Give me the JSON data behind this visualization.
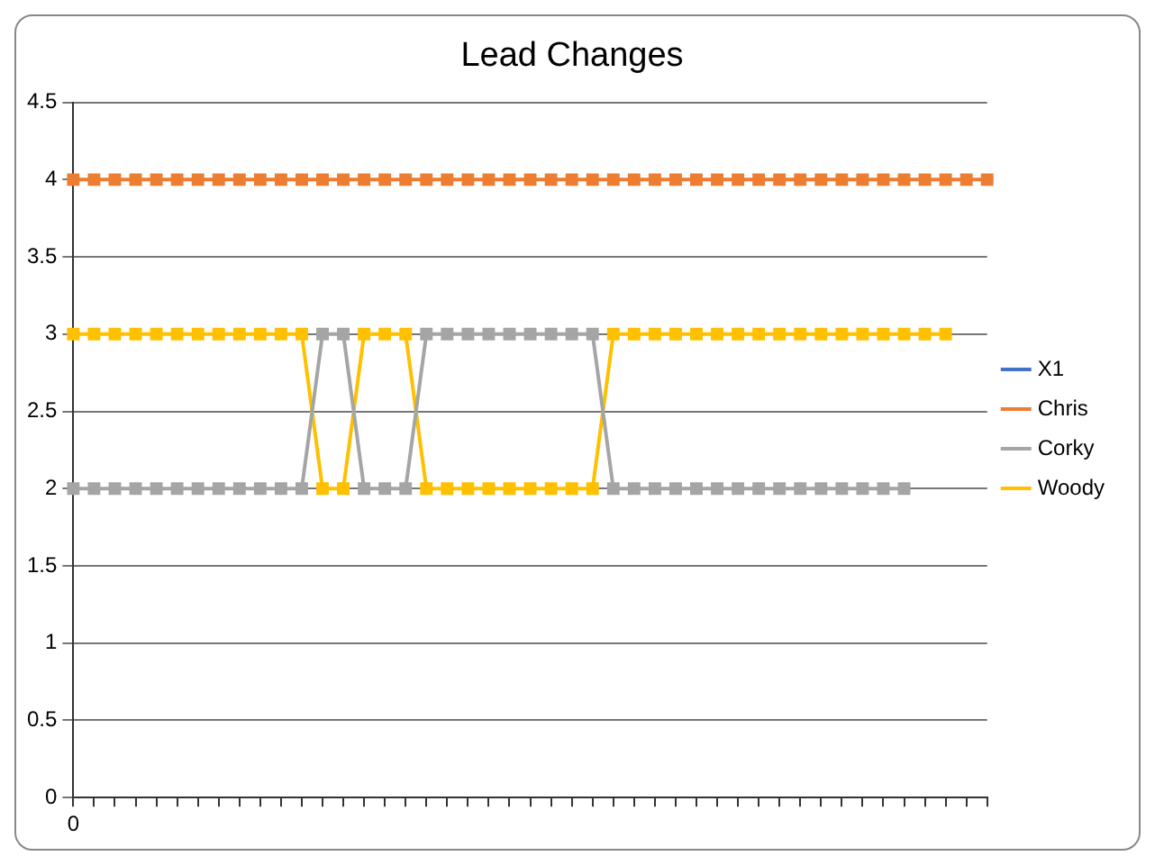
{
  "chart_data": {
    "type": "line",
    "title": "Lead Changes",
    "categories": [
      "0",
      null,
      null,
      null,
      null,
      null,
      null,
      null,
      null,
      null,
      null,
      null,
      null,
      null,
      null,
      null,
      null,
      null,
      null,
      null,
      null,
      null,
      null,
      null,
      null,
      null,
      null,
      null,
      null,
      null,
      null,
      null,
      null,
      null,
      null,
      null,
      null,
      null,
      null,
      null,
      null,
      null,
      null,
      null,
      null
    ],
    "series": [
      {
        "name": "X1",
        "color": "#4472c4",
        "values": [
          null,
          null,
          null,
          null,
          null,
          null,
          null,
          null,
          null,
          null,
          null,
          null,
          null,
          null,
          null,
          null,
          null,
          null,
          null,
          null,
          null,
          null,
          null,
          null,
          null,
          null,
          null,
          null,
          null,
          null,
          null,
          null,
          null,
          null,
          null,
          null,
          null,
          null,
          null,
          null,
          null,
          null,
          null,
          null,
          null
        ]
      },
      {
        "name": "Chris",
        "color": "#ed7d31",
        "values": [
          4,
          4,
          4,
          4,
          4,
          4,
          4,
          4,
          4,
          4,
          4,
          4,
          4,
          4,
          4,
          4,
          4,
          4,
          4,
          4,
          4,
          4,
          4,
          4,
          4,
          4,
          4,
          4,
          4,
          4,
          4,
          4,
          4,
          4,
          4,
          4,
          4,
          4,
          4,
          4,
          4,
          4,
          4,
          4,
          4
        ]
      },
      {
        "name": "Corky",
        "color": "#a5a5a5",
        "values": [
          2,
          2,
          2,
          2,
          2,
          2,
          2,
          2,
          2,
          2,
          2,
          2,
          3,
          3,
          2,
          2,
          2,
          3,
          3,
          3,
          3,
          3,
          3,
          3,
          3,
          3,
          2,
          2,
          2,
          2,
          2,
          2,
          2,
          2,
          2,
          2,
          2,
          2,
          2,
          2,
          2,
          null,
          null,
          null,
          null
        ]
      },
      {
        "name": "Woody",
        "color": "#ffc000",
        "values": [
          3,
          3,
          3,
          3,
          3,
          3,
          3,
          3,
          3,
          3,
          3,
          3,
          2,
          2,
          3,
          3,
          3,
          2,
          2,
          2,
          2,
          2,
          2,
          2,
          2,
          2,
          3,
          3,
          3,
          3,
          3,
          3,
          3,
          3,
          3,
          3,
          3,
          3,
          3,
          3,
          3,
          3,
          3,
          null,
          null
        ]
      }
    ],
    "ylim": [
      0,
      4.5
    ],
    "yticks": [
      0,
      0.5,
      1,
      1.5,
      2,
      2.5,
      3,
      3.5,
      4,
      4.5
    ],
    "grid": "y",
    "legend": "right",
    "marker": "square",
    "line_style": "solid"
  }
}
